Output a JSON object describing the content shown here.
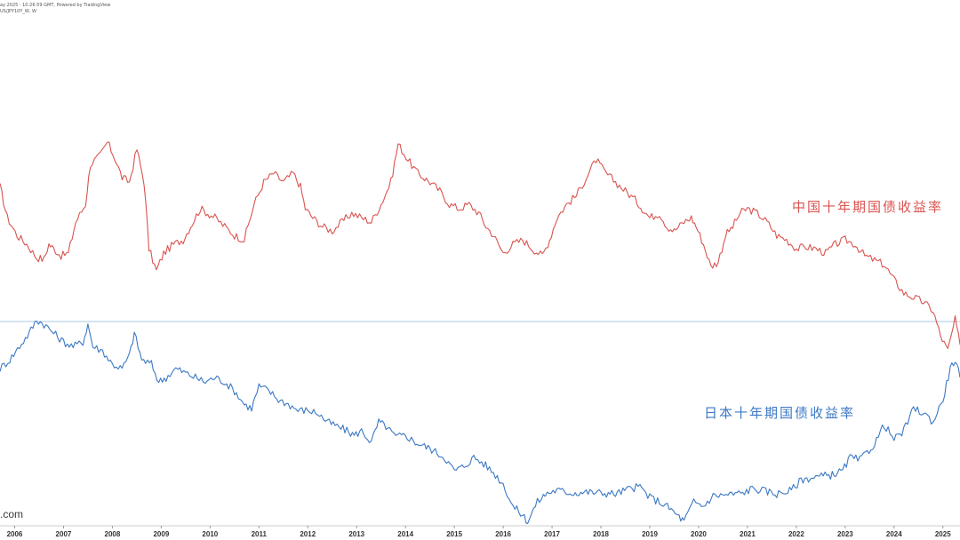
{
  "header": {
    "line1": "ay 2025 · 10:26:59 GMT, Powered by TradingView",
    "line2": "US/JPY10Y_W, W"
  },
  "watermark": ".com",
  "colors": {
    "china": "#d9534f",
    "japan": "#3b78c4",
    "hline": "#a9c9e4",
    "axis": "#cfcfcf"
  },
  "chart_data": {
    "type": "line",
    "title": "",
    "xlabel": "",
    "ylabel": "",
    "x_ticks": [
      "2006",
      "2007",
      "2008",
      "2009",
      "2010",
      "2011",
      "2012",
      "2013",
      "2014",
      "2015",
      "2016",
      "2017",
      "2018",
      "2019",
      "2020",
      "2021",
      "2022",
      "2023",
      "2024",
      "2025"
    ],
    "xlim": [
      2005.7,
      2025.35
    ],
    "ylim": [
      0.0,
      5.0
    ],
    "grid": false,
    "reference_line": 2.0,
    "series": [
      {
        "name": "中国十年期国债收益率",
        "color": "#d9534f",
        "points": [
          [
            2005.7,
            3.5
          ],
          [
            2005.85,
            3.15
          ],
          [
            2006.05,
            2.95
          ],
          [
            2006.25,
            2.85
          ],
          [
            2006.45,
            2.7
          ],
          [
            2006.6,
            2.68
          ],
          [
            2006.7,
            2.85
          ],
          [
            2006.8,
            2.8
          ],
          [
            2006.95,
            2.72
          ],
          [
            2007.1,
            2.75
          ],
          [
            2007.25,
            3.1
          ],
          [
            2007.45,
            3.3
          ],
          [
            2007.55,
            3.75
          ],
          [
            2007.75,
            3.85
          ],
          [
            2007.9,
            4.0
          ],
          [
            2008.05,
            3.82
          ],
          [
            2008.2,
            3.6
          ],
          [
            2008.35,
            3.55
          ],
          [
            2008.5,
            3.92
          ],
          [
            2008.65,
            3.55
          ],
          [
            2008.75,
            2.8
          ],
          [
            2008.9,
            2.55
          ],
          [
            2009.05,
            2.75
          ],
          [
            2009.25,
            2.85
          ],
          [
            2009.45,
            2.9
          ],
          [
            2009.6,
            3.05
          ],
          [
            2009.8,
            3.25
          ],
          [
            2009.95,
            3.2
          ],
          [
            2010.1,
            3.15
          ],
          [
            2010.3,
            3.05
          ],
          [
            2010.5,
            2.95
          ],
          [
            2010.7,
            2.9
          ],
          [
            2010.9,
            3.3
          ],
          [
            2011.1,
            3.55
          ],
          [
            2011.3,
            3.65
          ],
          [
            2011.5,
            3.55
          ],
          [
            2011.7,
            3.65
          ],
          [
            2011.85,
            3.5
          ],
          [
            2011.95,
            3.25
          ],
          [
            2012.1,
            3.15
          ],
          [
            2012.3,
            3.05
          ],
          [
            2012.5,
            3.0
          ],
          [
            2012.7,
            3.1
          ],
          [
            2012.9,
            3.2
          ],
          [
            2013.1,
            3.15
          ],
          [
            2013.3,
            3.1
          ],
          [
            2013.5,
            3.3
          ],
          [
            2013.7,
            3.55
          ],
          [
            2013.85,
            3.98
          ],
          [
            2014.05,
            3.8
          ],
          [
            2014.25,
            3.65
          ],
          [
            2014.5,
            3.55
          ],
          [
            2014.7,
            3.45
          ],
          [
            2014.9,
            3.3
          ],
          [
            2015.1,
            3.25
          ],
          [
            2015.3,
            3.3
          ],
          [
            2015.5,
            3.2
          ],
          [
            2015.65,
            3.05
          ],
          [
            2015.8,
            2.95
          ],
          [
            2016.0,
            2.75
          ],
          [
            2016.2,
            2.85
          ],
          [
            2016.4,
            2.9
          ],
          [
            2016.6,
            2.8
          ],
          [
            2016.8,
            2.72
          ],
          [
            2016.95,
            2.9
          ],
          [
            2017.1,
            3.15
          ],
          [
            2017.3,
            3.3
          ],
          [
            2017.5,
            3.4
          ],
          [
            2017.7,
            3.6
          ],
          [
            2017.9,
            3.8
          ],
          [
            2018.1,
            3.65
          ],
          [
            2018.3,
            3.55
          ],
          [
            2018.5,
            3.45
          ],
          [
            2018.7,
            3.35
          ],
          [
            2018.85,
            3.25
          ],
          [
            2019.0,
            3.15
          ],
          [
            2019.2,
            3.2
          ],
          [
            2019.35,
            3.05
          ],
          [
            2019.5,
            3.0
          ],
          [
            2019.7,
            3.1
          ],
          [
            2019.85,
            3.15
          ],
          [
            2019.95,
            3.05
          ],
          [
            2020.1,
            2.85
          ],
          [
            2020.25,
            2.6
          ],
          [
            2020.4,
            2.65
          ],
          [
            2020.55,
            2.95
          ],
          [
            2020.7,
            3.05
          ],
          [
            2020.85,
            3.2
          ],
          [
            2021.0,
            3.25
          ],
          [
            2021.2,
            3.2
          ],
          [
            2021.4,
            3.1
          ],
          [
            2021.6,
            2.95
          ],
          [
            2021.8,
            2.9
          ],
          [
            2022.0,
            2.8
          ],
          [
            2022.2,
            2.82
          ],
          [
            2022.4,
            2.8
          ],
          [
            2022.6,
            2.75
          ],
          [
            2022.8,
            2.85
          ],
          [
            2023.0,
            2.9
          ],
          [
            2023.2,
            2.85
          ],
          [
            2023.4,
            2.72
          ],
          [
            2023.6,
            2.67
          ],
          [
            2023.8,
            2.62
          ],
          [
            2024.0,
            2.45
          ],
          [
            2024.2,
            2.3
          ],
          [
            2024.4,
            2.25
          ],
          [
            2024.6,
            2.2
          ],
          [
            2024.8,
            2.1
          ],
          [
            2024.95,
            1.82
          ],
          [
            2025.1,
            1.65
          ],
          [
            2025.25,
            2.0
          ],
          [
            2025.35,
            1.72
          ]
        ]
      },
      {
        "name": "日本十年期国债收益率",
        "color": "#3b78c4",
        "points": [
          [
            2005.7,
            1.45
          ],
          [
            2005.9,
            1.55
          ],
          [
            2006.1,
            1.7
          ],
          [
            2006.3,
            1.85
          ],
          [
            2006.45,
            2.0
          ],
          [
            2006.6,
            1.95
          ],
          [
            2006.8,
            1.85
          ],
          [
            2007.0,
            1.75
          ],
          [
            2007.2,
            1.7
          ],
          [
            2007.4,
            1.75
          ],
          [
            2007.5,
            1.95
          ],
          [
            2007.6,
            1.7
          ],
          [
            2007.8,
            1.65
          ],
          [
            2008.0,
            1.5
          ],
          [
            2008.2,
            1.45
          ],
          [
            2008.35,
            1.6
          ],
          [
            2008.45,
            1.85
          ],
          [
            2008.6,
            1.55
          ],
          [
            2008.8,
            1.5
          ],
          [
            2008.95,
            1.3
          ],
          [
            2009.1,
            1.35
          ],
          [
            2009.3,
            1.45
          ],
          [
            2009.5,
            1.4
          ],
          [
            2009.7,
            1.35
          ],
          [
            2009.9,
            1.3
          ],
          [
            2010.1,
            1.35
          ],
          [
            2010.3,
            1.3
          ],
          [
            2010.5,
            1.2
          ],
          [
            2010.7,
            1.05
          ],
          [
            2010.85,
            1.0
          ],
          [
            2011.0,
            1.25
          ],
          [
            2011.2,
            1.2
          ],
          [
            2011.4,
            1.1
          ],
          [
            2011.6,
            1.05
          ],
          [
            2011.8,
            0.98
          ],
          [
            2012.0,
            0.98
          ],
          [
            2012.2,
            0.95
          ],
          [
            2012.4,
            0.85
          ],
          [
            2012.6,
            0.8
          ],
          [
            2012.8,
            0.75
          ],
          [
            2012.95,
            0.7
          ],
          [
            2013.1,
            0.75
          ],
          [
            2013.3,
            0.62
          ],
          [
            2013.45,
            0.85
          ],
          [
            2013.6,
            0.8
          ],
          [
            2013.8,
            0.68
          ],
          [
            2014.0,
            0.7
          ],
          [
            2014.2,
            0.62
          ],
          [
            2014.5,
            0.55
          ],
          [
            2014.8,
            0.45
          ],
          [
            2015.0,
            0.3
          ],
          [
            2015.2,
            0.35
          ],
          [
            2015.4,
            0.45
          ],
          [
            2015.6,
            0.38
          ],
          [
            2015.8,
            0.28
          ],
          [
            2016.0,
            0.15
          ],
          [
            2016.2,
            -0.1
          ],
          [
            2016.4,
            -0.2
          ],
          [
            2016.5,
            -0.27
          ],
          [
            2016.7,
            -0.05
          ],
          [
            2016.9,
            0.05
          ],
          [
            2017.1,
            0.08
          ],
          [
            2017.4,
            0.05
          ],
          [
            2017.7,
            0.06
          ],
          [
            2018.0,
            0.05
          ],
          [
            2018.3,
            0.04
          ],
          [
            2018.6,
            0.1
          ],
          [
            2018.8,
            0.12
          ],
          [
            2019.0,
            0.0
          ],
          [
            2019.2,
            -0.05
          ],
          [
            2019.4,
            -0.12
          ],
          [
            2019.6,
            -0.22
          ],
          [
            2019.7,
            -0.27
          ],
          [
            2019.9,
            -0.05
          ],
          [
            2020.1,
            -0.1
          ],
          [
            2020.3,
            0.02
          ],
          [
            2020.6,
            0.03
          ],
          [
            2020.9,
            0.05
          ],
          [
            2021.1,
            0.1
          ],
          [
            2021.3,
            0.08
          ],
          [
            2021.6,
            0.04
          ],
          [
            2021.9,
            0.08
          ],
          [
            2022.1,
            0.2
          ],
          [
            2022.4,
            0.23
          ],
          [
            2022.7,
            0.25
          ],
          [
            2022.95,
            0.3
          ],
          [
            2023.1,
            0.45
          ],
          [
            2023.3,
            0.42
          ],
          [
            2023.6,
            0.6
          ],
          [
            2023.8,
            0.82
          ],
          [
            2024.0,
            0.65
          ],
          [
            2024.2,
            0.75
          ],
          [
            2024.4,
            1.0
          ],
          [
            2024.6,
            0.95
          ],
          [
            2024.8,
            0.85
          ],
          [
            2025.0,
            1.1
          ],
          [
            2025.15,
            1.45
          ],
          [
            2025.25,
            1.55
          ],
          [
            2025.35,
            1.35
          ]
        ]
      }
    ]
  }
}
